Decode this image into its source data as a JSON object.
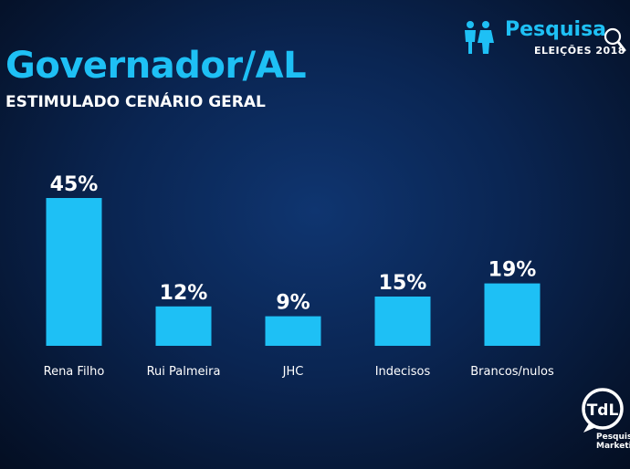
{
  "header": {
    "title": "Governador/AL",
    "subtitle": "ESTIMULADO CENÁRIO GERAL"
  },
  "brand": {
    "word": "Pesquisa",
    "year_label": "ELEIÇÕES 2018",
    "icon": "people-icon",
    "lens_icon": "magnifier-icon"
  },
  "logo": {
    "monogram": "TdL",
    "line1": "Pesquisa",
    "line2": "Marketing"
  },
  "colors": {
    "accent": "#1ec0f5",
    "bar": "#1ec0f5",
    "background": "#0a2552",
    "text": "#ffffff"
  },
  "chart_data": {
    "type": "bar",
    "title": "Governador/AL",
    "subtitle": "ESTIMULADO CENÁRIO GERAL",
    "categories": [
      "Rena Filho",
      "Rui Palmeira",
      "JHC",
      "Indecisos",
      "Brancos/nulos"
    ],
    "values": [
      45,
      12,
      9,
      15,
      19
    ],
    "value_labels": [
      "45%",
      "12%",
      "9%",
      "15%",
      "19%"
    ],
    "unit": "%",
    "ylim": [
      0,
      45
    ],
    "grid": false,
    "legend": "none"
  }
}
